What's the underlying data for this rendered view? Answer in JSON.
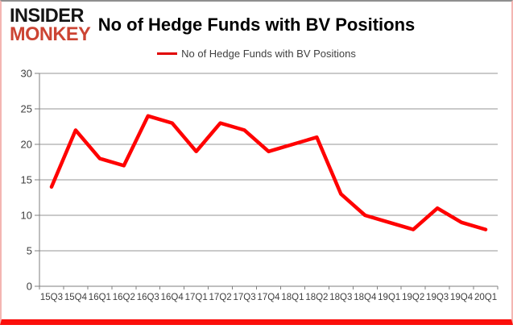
{
  "logo": {
    "line1": "INSIDER",
    "line2": "MONKEY"
  },
  "header": {
    "title": "No of Hedge Funds with BV Positions"
  },
  "legend": {
    "label": "No of Hedge Funds with BV Positions",
    "swatch_color": "#e00000"
  },
  "colors": {
    "line": "#ff0000",
    "grid": "#949494",
    "axis": "#7f7f7f",
    "tick_text": "#3f3f3f",
    "title_text": "#000000",
    "logo_black": "#151515",
    "logo_red": "#cc4433",
    "border_bottom": "#fb0f0b"
  },
  "chart_data": {
    "type": "line",
    "title": "No of Hedge Funds with BV Positions",
    "categories": [
      "15Q3",
      "15Q4",
      "16Q1",
      "16Q2",
      "16Q3",
      "16Q4",
      "17Q1",
      "17Q2",
      "17Q3",
      "17Q4",
      "18Q1",
      "18Q2",
      "18Q3",
      "18Q4",
      "19Q1",
      "19Q2",
      "19Q3",
      "19Q4",
      "20Q1"
    ],
    "series": [
      {
        "name": "No of Hedge Funds with BV Positions",
        "values": [
          14,
          22,
          18,
          17,
          24,
          23,
          19,
          23,
          22,
          19,
          20,
          21,
          13,
          10,
          9,
          8,
          11,
          9,
          8
        ]
      }
    ],
    "xlabel": "",
    "ylabel": "",
    "ylim": [
      0,
      30
    ],
    "ytick_step": 5,
    "grid": true,
    "legend_position": "top"
  }
}
